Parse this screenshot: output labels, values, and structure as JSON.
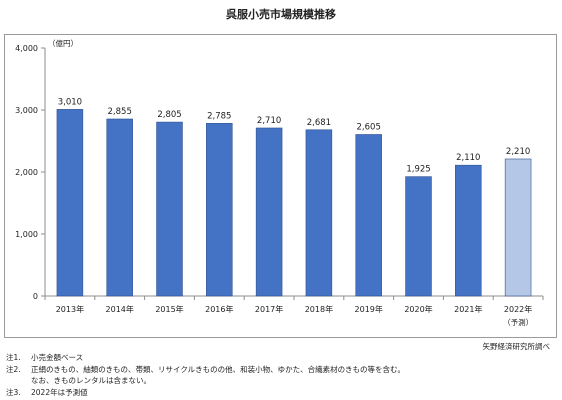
{
  "chart_data": {
    "type": "bar",
    "title": "呉服小売市場規模推移",
    "unit_label": "（億円）",
    "categories": [
      "2013年",
      "2014年",
      "2015年",
      "2016年",
      "2017年",
      "2018年",
      "2019年",
      "2020年",
      "2021年",
      "2022年"
    ],
    "category_sublabels": [
      "",
      "",
      "",
      "",
      "",
      "",
      "",
      "",
      "",
      "（予測）"
    ],
    "values": [
      3010,
      2855,
      2805,
      2785,
      2710,
      2681,
      2605,
      1925,
      2110,
      2210
    ],
    "value_labels": [
      "3,010",
      "2,855",
      "2,805",
      "2,785",
      "2,710",
      "2,681",
      "2,605",
      "1,925",
      "2,110",
      "2,210"
    ],
    "ylim": [
      0,
      4000
    ],
    "yticks": [
      0,
      1000,
      2000,
      3000,
      4000
    ],
    "ytick_labels": [
      "0",
      "1,000",
      "2,000",
      "3,000",
      "4,000"
    ],
    "grid": false,
    "legend": "none",
    "colors": {
      "actual": "#4472c4",
      "forecast": "#b4c7e7",
      "edge": "#2f528f"
    },
    "forecast_indices": [
      9
    ]
  },
  "source": "矢野経済研究所調べ",
  "notes": [
    {
      "label": "注1.",
      "lines": [
        "小売金額ベース"
      ]
    },
    {
      "label": "注2.",
      "lines": [
        "正絹のきもの、紬類のきもの、帯類、リサイクルきものの他、和装小物、ゆかた、合繊素材のきもの等を含む。",
        "なお、きものレンタルは含まない。"
      ]
    },
    {
      "label": "注3.",
      "lines": [
        "2022年は予測値"
      ]
    }
  ]
}
